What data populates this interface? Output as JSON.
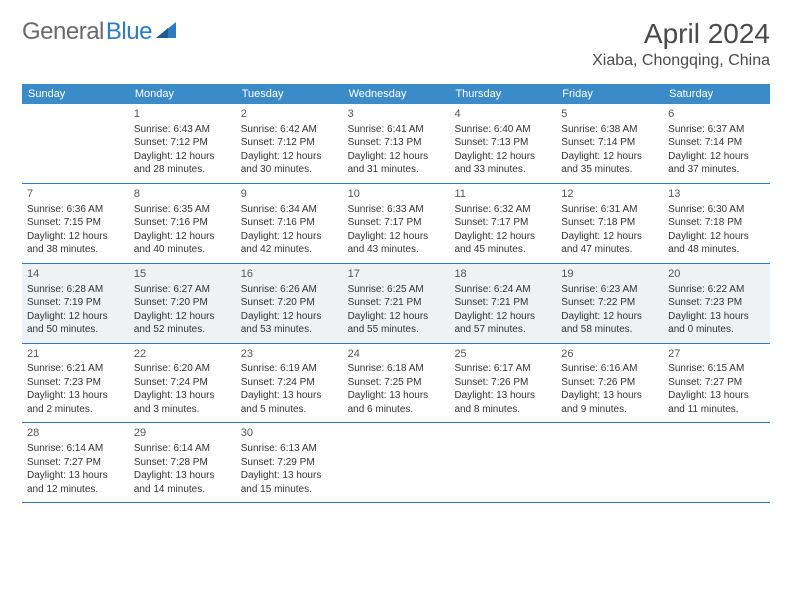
{
  "logo": {
    "textGray": "General",
    "textBlue": "Blue"
  },
  "header": {
    "title": "April 2024",
    "location": "Xiaba, Chongqing, China"
  },
  "colors": {
    "headerBar": "#3b8bc9",
    "rowBorder": "#2f7ac0",
    "shaded": "#eef2f5",
    "logoGray": "#6a6a6a",
    "logoBlue": "#2f7ac0"
  },
  "dayNames": [
    "Sunday",
    "Monday",
    "Tuesday",
    "Wednesday",
    "Thursday",
    "Friday",
    "Saturday"
  ],
  "weeks": [
    [
      null,
      {
        "n": "1",
        "sr": "6:43 AM",
        "ss": "7:12 PM",
        "dl": "12 hours and 28 minutes."
      },
      {
        "n": "2",
        "sr": "6:42 AM",
        "ss": "7:12 PM",
        "dl": "12 hours and 30 minutes."
      },
      {
        "n": "3",
        "sr": "6:41 AM",
        "ss": "7:13 PM",
        "dl": "12 hours and 31 minutes."
      },
      {
        "n": "4",
        "sr": "6:40 AM",
        "ss": "7:13 PM",
        "dl": "12 hours and 33 minutes."
      },
      {
        "n": "5",
        "sr": "6:38 AM",
        "ss": "7:14 PM",
        "dl": "12 hours and 35 minutes."
      },
      {
        "n": "6",
        "sr": "6:37 AM",
        "ss": "7:14 PM",
        "dl": "12 hours and 37 minutes."
      }
    ],
    [
      {
        "n": "7",
        "sr": "6:36 AM",
        "ss": "7:15 PM",
        "dl": "12 hours and 38 minutes."
      },
      {
        "n": "8",
        "sr": "6:35 AM",
        "ss": "7:16 PM",
        "dl": "12 hours and 40 minutes."
      },
      {
        "n": "9",
        "sr": "6:34 AM",
        "ss": "7:16 PM",
        "dl": "12 hours and 42 minutes."
      },
      {
        "n": "10",
        "sr": "6:33 AM",
        "ss": "7:17 PM",
        "dl": "12 hours and 43 minutes."
      },
      {
        "n": "11",
        "sr": "6:32 AM",
        "ss": "7:17 PM",
        "dl": "12 hours and 45 minutes."
      },
      {
        "n": "12",
        "sr": "6:31 AM",
        "ss": "7:18 PM",
        "dl": "12 hours and 47 minutes."
      },
      {
        "n": "13",
        "sr": "6:30 AM",
        "ss": "7:18 PM",
        "dl": "12 hours and 48 minutes."
      }
    ],
    [
      {
        "n": "14",
        "sr": "6:28 AM",
        "ss": "7:19 PM",
        "dl": "12 hours and 50 minutes."
      },
      {
        "n": "15",
        "sr": "6:27 AM",
        "ss": "7:20 PM",
        "dl": "12 hours and 52 minutes."
      },
      {
        "n": "16",
        "sr": "6:26 AM",
        "ss": "7:20 PM",
        "dl": "12 hours and 53 minutes."
      },
      {
        "n": "17",
        "sr": "6:25 AM",
        "ss": "7:21 PM",
        "dl": "12 hours and 55 minutes."
      },
      {
        "n": "18",
        "sr": "6:24 AM",
        "ss": "7:21 PM",
        "dl": "12 hours and 57 minutes."
      },
      {
        "n": "19",
        "sr": "6:23 AM",
        "ss": "7:22 PM",
        "dl": "12 hours and 58 minutes."
      },
      {
        "n": "20",
        "sr": "6:22 AM",
        "ss": "7:23 PM",
        "dl": "13 hours and 0 minutes."
      }
    ],
    [
      {
        "n": "21",
        "sr": "6:21 AM",
        "ss": "7:23 PM",
        "dl": "13 hours and 2 minutes."
      },
      {
        "n": "22",
        "sr": "6:20 AM",
        "ss": "7:24 PM",
        "dl": "13 hours and 3 minutes."
      },
      {
        "n": "23",
        "sr": "6:19 AM",
        "ss": "7:24 PM",
        "dl": "13 hours and 5 minutes."
      },
      {
        "n": "24",
        "sr": "6:18 AM",
        "ss": "7:25 PM",
        "dl": "13 hours and 6 minutes."
      },
      {
        "n": "25",
        "sr": "6:17 AM",
        "ss": "7:26 PM",
        "dl": "13 hours and 8 minutes."
      },
      {
        "n": "26",
        "sr": "6:16 AM",
        "ss": "7:26 PM",
        "dl": "13 hours and 9 minutes."
      },
      {
        "n": "27",
        "sr": "6:15 AM",
        "ss": "7:27 PM",
        "dl": "13 hours and 11 minutes."
      }
    ],
    [
      {
        "n": "28",
        "sr": "6:14 AM",
        "ss": "7:27 PM",
        "dl": "13 hours and 12 minutes."
      },
      {
        "n": "29",
        "sr": "6:14 AM",
        "ss": "7:28 PM",
        "dl": "13 hours and 14 minutes."
      },
      {
        "n": "30",
        "sr": "6:13 AM",
        "ss": "7:29 PM",
        "dl": "13 hours and 15 minutes."
      },
      null,
      null,
      null,
      null
    ]
  ],
  "shadedRows": [
    2
  ],
  "labels": {
    "sunrise": "Sunrise: ",
    "sunset": "Sunset: ",
    "daylight": "Daylight: "
  }
}
